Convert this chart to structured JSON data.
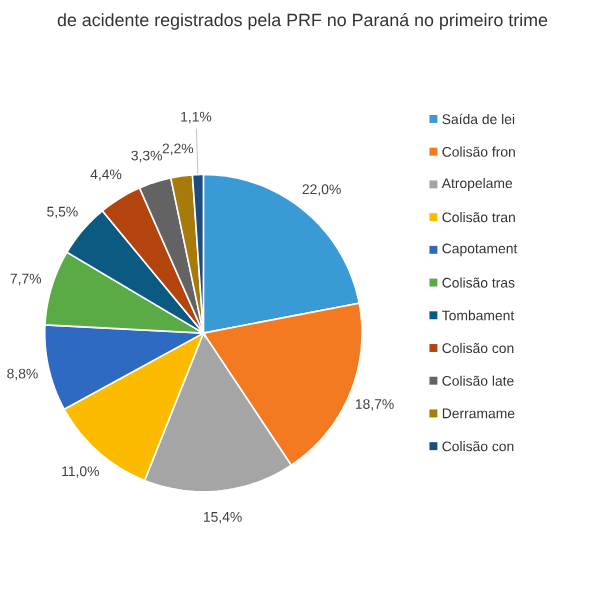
{
  "chart_data": {
    "type": "pie",
    "title": "de acidente registrados pela PRF no Paraná no primeiro trime",
    "categories": [
      "Saída de lei",
      "Colisão fron",
      "Atropelame",
      "Colisão tran",
      "Capotament",
      "Colisão tras",
      "Tombament",
      "Colisão con",
      "Colisão late",
      "Derramame",
      "Colisão con"
    ],
    "values": [
      22.0,
      18.7,
      15.4,
      11.0,
      8.8,
      7.7,
      5.5,
      4.4,
      3.3,
      2.2,
      1.1
    ],
    "value_labels": [
      "22,0%",
      "18,7%",
      "15,4%",
      "11,0%",
      "8,8%",
      "7,7%",
      "5,5%",
      "4,4%",
      "3,3%",
      "2,2%",
      "1,1%"
    ],
    "colors": [
      "#3a9ad6",
      "#f47a22",
      "#a5a5a5",
      "#fdbb00",
      "#2f6ac2",
      "#5aaa46",
      "#0b5a82",
      "#b4440e",
      "#636363",
      "#a77a0a",
      "#1d4d7f"
    ],
    "legend": "right"
  }
}
